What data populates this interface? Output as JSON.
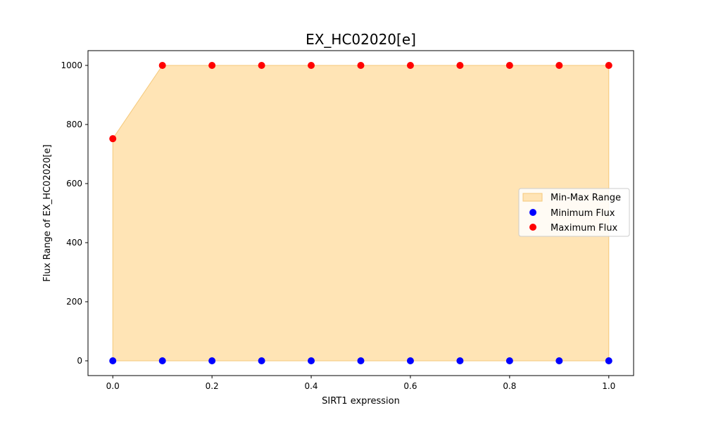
{
  "chart_data": {
    "type": "scatter",
    "title": "EX_HC02020[e]",
    "xlabel": "SIRT1 expression",
    "ylabel": "Flux Range of EX_HC02020[e]",
    "x": [
      0.0,
      0.1,
      0.2,
      0.3,
      0.4,
      0.5,
      0.6,
      0.7,
      0.8,
      0.9,
      1.0
    ],
    "series": [
      {
        "name": "Minimum Flux",
        "color": "#0000ff",
        "values": [
          0,
          0,
          0,
          0,
          0,
          0,
          0,
          0,
          0,
          0,
          0
        ]
      },
      {
        "name": "Maximum Flux",
        "color": "#ff0000",
        "values": [
          752,
          1000,
          1000,
          1000,
          1000,
          1000,
          1000,
          1000,
          1000,
          1000,
          1000
        ]
      }
    ],
    "fill": {
      "name": "Min-Max Range",
      "color": "#ffe4b5",
      "edge_color": "#f5c97a"
    },
    "xlim": [
      -0.05,
      1.05
    ],
    "ylim": [
      -50,
      1050
    ],
    "xticks": [
      "0.0",
      "0.2",
      "0.4",
      "0.6",
      "0.8",
      "1.0"
    ],
    "xtick_values": [
      0.0,
      0.2,
      0.4,
      0.6,
      0.8,
      1.0
    ],
    "yticks": [
      "0",
      "200",
      "400",
      "600",
      "800",
      "1000"
    ],
    "ytick_values": [
      0,
      200,
      400,
      600,
      800,
      1000
    ],
    "legend_placement": "center-right",
    "grid": false
  }
}
